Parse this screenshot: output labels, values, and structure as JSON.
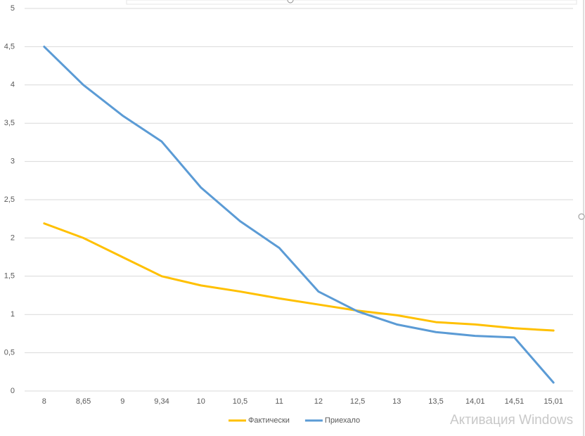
{
  "chart_data": {
    "type": "line",
    "categories": [
      "8",
      "8,65",
      "9",
      "9,34",
      "10",
      "10,5",
      "11",
      "12",
      "12,5",
      "13",
      "13,5",
      "14,01",
      "14,51",
      "15,01"
    ],
    "series": [
      {
        "name": "Фактически",
        "color": "#ffc000",
        "values": [
          2.19,
          2.0,
          1.75,
          1.5,
          1.38,
          1.3,
          1.21,
          1.13,
          1.05,
          0.99,
          0.9,
          0.87,
          0.82,
          0.79
        ]
      },
      {
        "name": "Приехало",
        "color": "#5b9bd5",
        "values": [
          4.5,
          4.0,
          3.6,
          3.26,
          2.66,
          2.22,
          1.87,
          1.3,
          1.04,
          0.87,
          0.77,
          0.72,
          0.7,
          0.11
        ]
      }
    ],
    "ylim": [
      0,
      5
    ],
    "yticks": [
      0,
      {
        "value": 0.5,
        "label": "0,5"
      },
      1,
      {
        "value": 1.5,
        "label": "1,5"
      },
      2,
      {
        "value": 2.5,
        "label": "2,5"
      },
      3,
      {
        "value": 3.5,
        "label": "3,5"
      },
      4,
      {
        "value": 4.5,
        "label": "4,5"
      },
      5
    ],
    "grid": true
  },
  "watermark": "Активация Windows"
}
